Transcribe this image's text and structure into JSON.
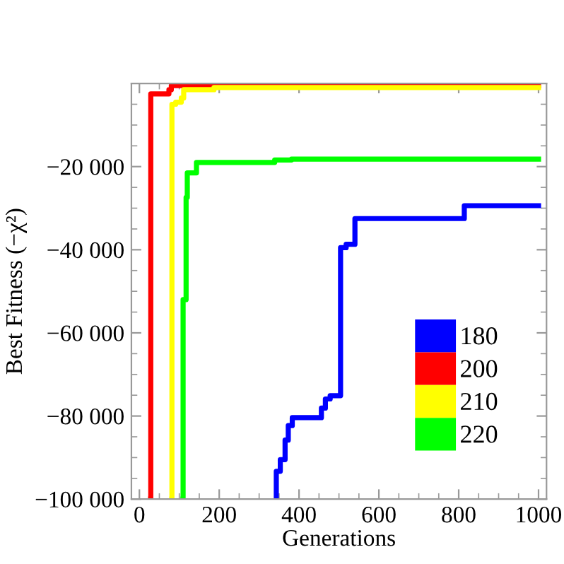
{
  "chart_data": {
    "type": "step",
    "xlabel": "Generations",
    "ylabel": "Best Fitness (−χ²)",
    "xlim": [
      -20,
      1020
    ],
    "ylim": [
      -100000,
      0
    ],
    "xticks": [
      0,
      200,
      400,
      600,
      800,
      1000
    ],
    "yticks": [
      {
        "value": -100000,
        "label": "−100 000"
      },
      {
        "value": -80000,
        "label": "−80 000"
      },
      {
        "value": -60000,
        "label": "−60 000"
      },
      {
        "value": -40000,
        "label": "−40 000"
      },
      {
        "value": -20000,
        "label": "−20 000"
      }
    ],
    "legend": "bottom right",
    "grid": false,
    "series": [
      {
        "name": "180",
        "color": "#0000ff",
        "x": [
          343,
          343,
          353,
          365,
          373,
          383,
          456,
          466,
          478,
          504,
          518,
          540,
          814,
          1000
        ],
        "values": [
          -100000,
          -93300,
          -90500,
          -85800,
          -82300,
          -80400,
          -78100,
          -75900,
          -75100,
          -39500,
          -38700,
          -32500,
          -29400,
          -29400
        ]
      },
      {
        "name": "200",
        "color": "#ff0000",
        "x": [
          28,
          28.5,
          74,
          80,
          1000
        ],
        "values": [
          -100000,
          -2500,
          -1500,
          -500,
          -500
        ]
      },
      {
        "name": "210",
        "color": "#ffff00",
        "x": [
          81,
          81.5,
          91,
          105,
          111,
          187,
          1000
        ],
        "values": [
          -100000,
          -5000,
          -4500,
          -3500,
          -1500,
          -1000,
          -1000
        ]
      },
      {
        "name": "220",
        "color": "#00ff00",
        "x": [
          109,
          109.5,
          117,
          120,
          143,
          339,
          381,
          1000
        ],
        "values": [
          -100000,
          -52000,
          -27400,
          -21500,
          -19000,
          -18400,
          -18200,
          -18200
        ]
      }
    ]
  }
}
